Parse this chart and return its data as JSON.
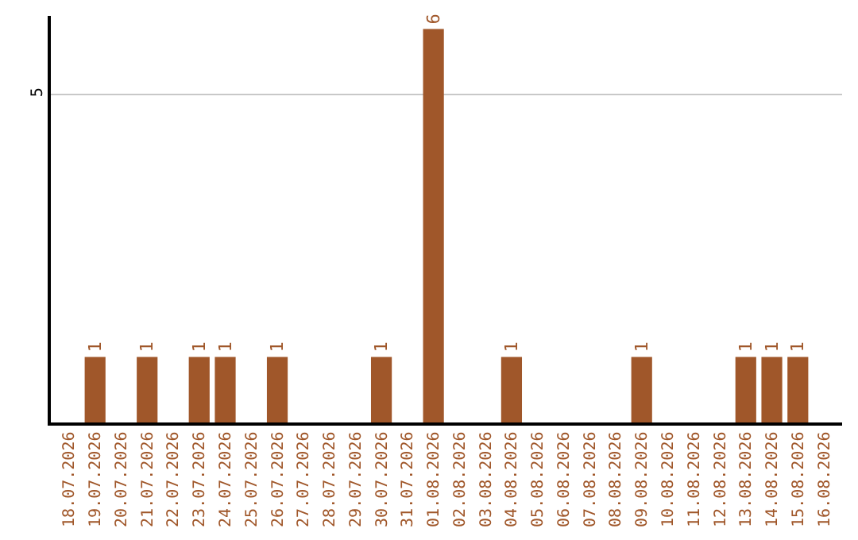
{
  "chart_data": {
    "type": "bar",
    "categories": [
      "18.07.2026",
      "19.07.2026",
      "20.07.2026",
      "21.07.2026",
      "22.07.2026",
      "23.07.2026",
      "24.07.2026",
      "25.07.2026",
      "26.07.2026",
      "27.07.2026",
      "28.07.2026",
      "29.07.2026",
      "30.07.2026",
      "31.07.2026",
      "01.08.2026",
      "02.08.2026",
      "03.08.2026",
      "04.08.2026",
      "05.08.2026",
      "06.08.2026",
      "07.08.2026",
      "08.08.2026",
      "09.08.2026",
      "10.08.2026",
      "11.08.2026",
      "12.08.2026",
      "13.08.2026",
      "14.08.2026",
      "15.08.2026",
      "16.08.2026"
    ],
    "values": [
      0,
      1,
      0,
      1,
      0,
      1,
      1,
      0,
      1,
      0,
      0,
      0,
      1,
      0,
      6,
      0,
      0,
      1,
      0,
      0,
      0,
      0,
      1,
      0,
      0,
      0,
      1,
      1,
      1,
      0
    ],
    "value_labels": [
      null,
      "1",
      null,
      "1",
      null,
      "1",
      "1",
      null,
      "1",
      null,
      null,
      null,
      "1",
      null,
      "6",
      null,
      null,
      "1",
      null,
      null,
      null,
      null,
      "1",
      null,
      null,
      null,
      "1",
      "1",
      "1",
      null
    ],
    "color": "#a0572a",
    "ylim": [
      0,
      6.2
    ],
    "yticks": [
      {
        "value": 0,
        "label": null
      },
      5
    ],
    "grid": "y",
    "legend": false
  }
}
